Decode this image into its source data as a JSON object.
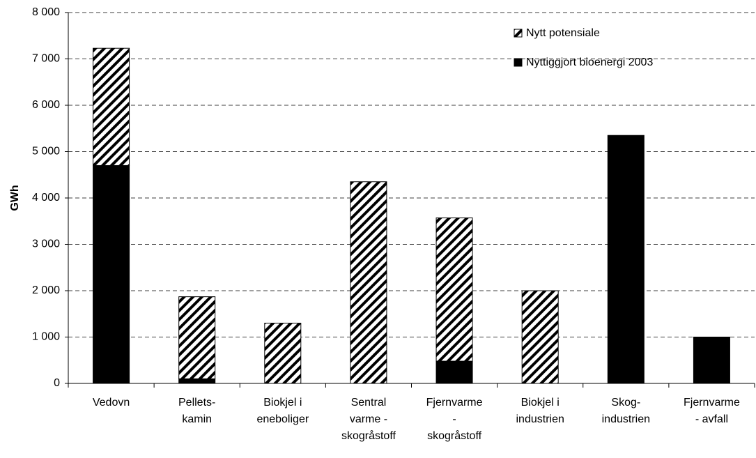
{
  "chart_data": {
    "type": "stacked-bar",
    "y_label": "GWh",
    "categories": [
      [
        "Vedovn"
      ],
      [
        "Pellets-",
        "kamin"
      ],
      [
        "Biokjel i",
        "eneboliger"
      ],
      [
        "Sentral",
        "varme -",
        "skogråstoff"
      ],
      [
        "Fjernvarme",
        "-",
        "skogråstoff"
      ],
      [
        "Biokjel i",
        "industrien"
      ],
      [
        "Skog-",
        "industrien"
      ],
      [
        "Fjernvarme",
        "- avfall"
      ]
    ],
    "series": [
      {
        "name": "Nyttiggjort bioenergi 2003",
        "color": "#000000",
        "values": [
          4700,
          100,
          0,
          0,
          480,
          0,
          5350,
          1000
        ]
      },
      {
        "name": "Nytt potensiale",
        "color": "#000000",
        "pattern": "diagonal-hatch",
        "values": [
          2530,
          1770,
          1300,
          4350,
          3090,
          2000,
          0,
          0
        ]
      }
    ],
    "ylim": [
      0,
      8000
    ],
    "yticks": [
      0,
      {
        "value": 1000,
        "label": "1 000"
      },
      {
        "value": 2000,
        "label": "2 000"
      },
      {
        "value": 3000,
        "label": "3 000"
      },
      {
        "value": 4000,
        "label": "4 000"
      },
      {
        "value": 5000,
        "label": "5 000"
      },
      {
        "value": 6000,
        "label": "6 000"
      },
      {
        "value": 7000,
        "label": "7 000"
      },
      {
        "value": 8000,
        "label": "8 000"
      }
    ],
    "grid": true,
    "legend": "top-right"
  }
}
